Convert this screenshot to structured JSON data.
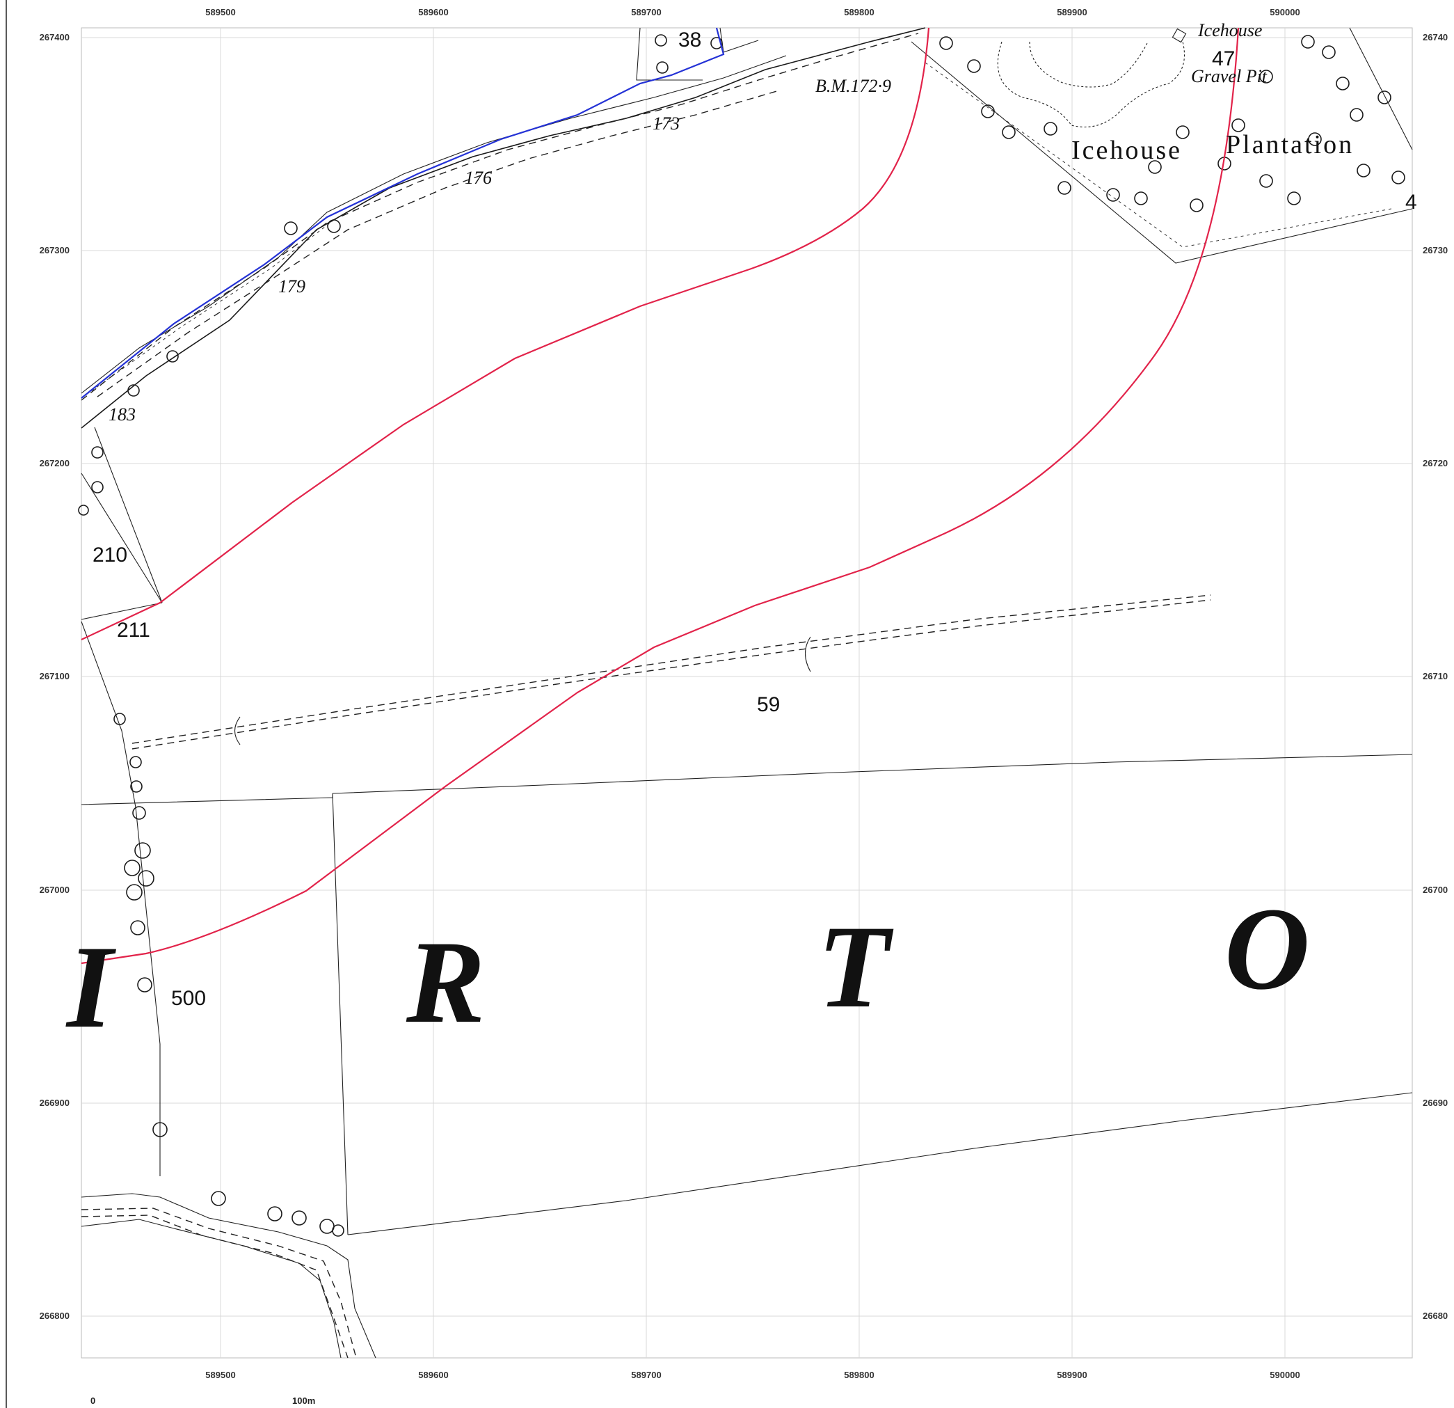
{
  "map": {
    "x_ticks": [
      "589500",
      "589600",
      "589700",
      "589800",
      "589900",
      "590000"
    ],
    "y_ticks_left": [
      "267400",
      "267300",
      "267200",
      "267100",
      "267000",
      "266900",
      "266800"
    ],
    "y_ticks_right": [
      "26740",
      "26730",
      "26720",
      "26710",
      "26700",
      "26690",
      "26680"
    ],
    "labels": {
      "parcel_38": "38",
      "icehouse_top": "Icehouse",
      "parcel_47": "47",
      "gravel_pit": "Gravel Pit",
      "benchmark": "B.M.172·9",
      "icehouse": "Icehouse",
      "plantation": "Plantation",
      "edge_4": "4",
      "spot_173": "173",
      "spot_176": "176",
      "spot_179": "179",
      "spot_183": "183",
      "parcel_210": "210",
      "parcel_211": "211",
      "parcel_59": "59",
      "parcel_500": "500",
      "letter_edge": "I",
      "letter_r": "R",
      "letter_t": "T",
      "letter_o": "O"
    },
    "scale": {
      "start": "0",
      "end": "100m"
    },
    "colors": {
      "route_red": "#e2234a",
      "route_blue": "#2432d6",
      "grid": "#d8d8d8"
    }
  }
}
